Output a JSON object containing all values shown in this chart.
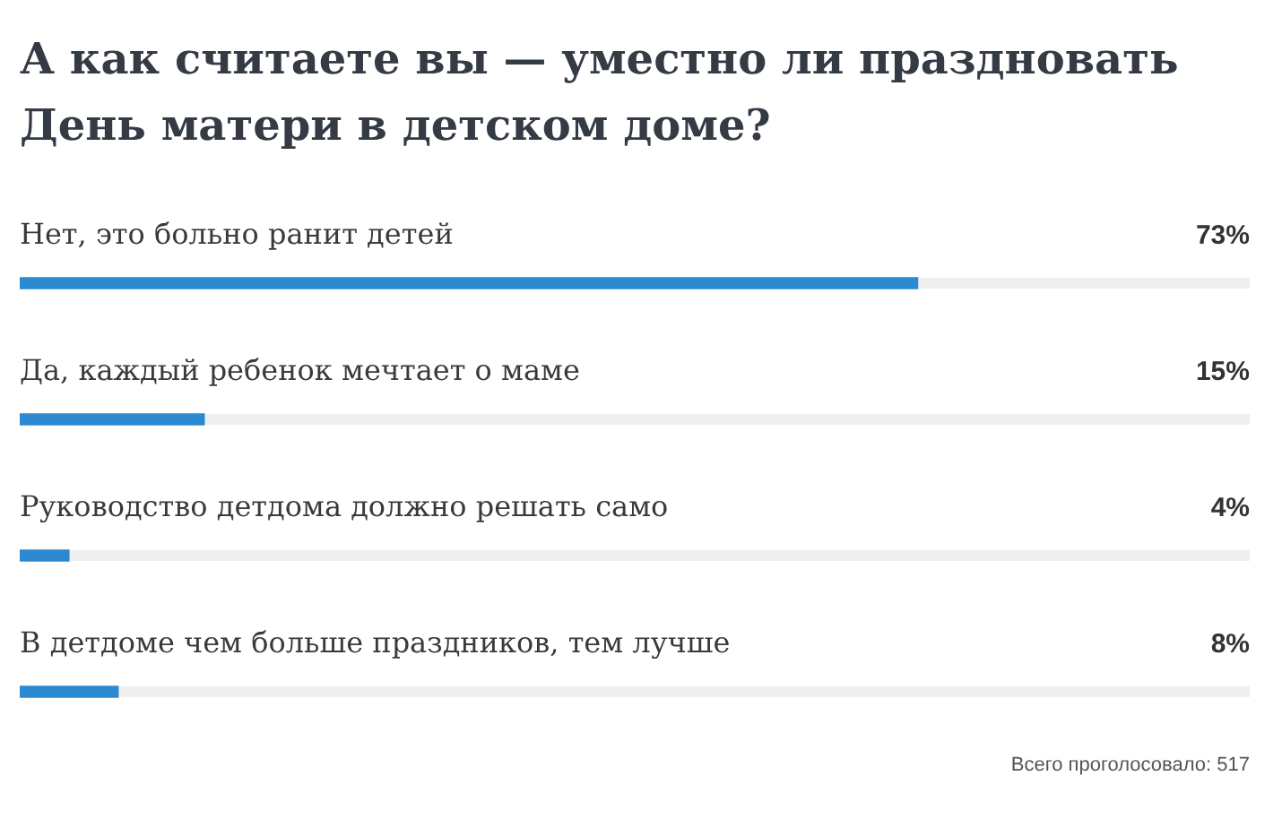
{
  "chart_data": {
    "type": "bar",
    "orientation": "horizontal",
    "title": "А как считаете вы — уместно ли праздновать День матери в детском доме?",
    "categories": [
      "Нет, это больно ранит детей",
      "Да, каждый ребенок мечтает о маме",
      "Руководство детдома должно решать само",
      "В детдоме чем больше праздников, тем лучше"
    ],
    "values": [
      73,
      15,
      4,
      8
    ],
    "value_labels": [
      "73%",
      "15%",
      "4%",
      "8%"
    ],
    "color": "#2a89d1",
    "xlim": [
      0,
      100
    ],
    "tick_labels": false,
    "annotations": [
      "Всего проголосовало: 517"
    ]
  }
}
